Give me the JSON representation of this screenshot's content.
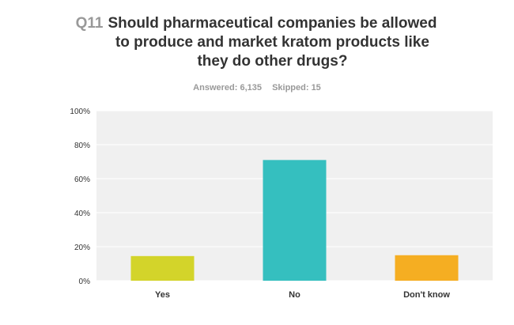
{
  "question": {
    "number": "Q11",
    "text": "Should pharmaceutical companies be allowed to produce and market kratom products like they do other drugs?"
  },
  "stats": {
    "answered": "Answered: 6,135",
    "skipped": "Skipped: 15"
  },
  "chart_data": {
    "type": "bar",
    "categories": [
      "Yes",
      "No",
      "Don't know"
    ],
    "values": [
      14.5,
      71.0,
      15.0
    ],
    "colors": [
      "#d3d42a",
      "#35bfbf",
      "#f5ae22"
    ],
    "ylim": [
      0,
      100
    ],
    "yticks": [
      "0%",
      "20%",
      "40%",
      "60%",
      "80%",
      "100%"
    ],
    "grid": true,
    "plot_background": "#f0f0f0"
  }
}
